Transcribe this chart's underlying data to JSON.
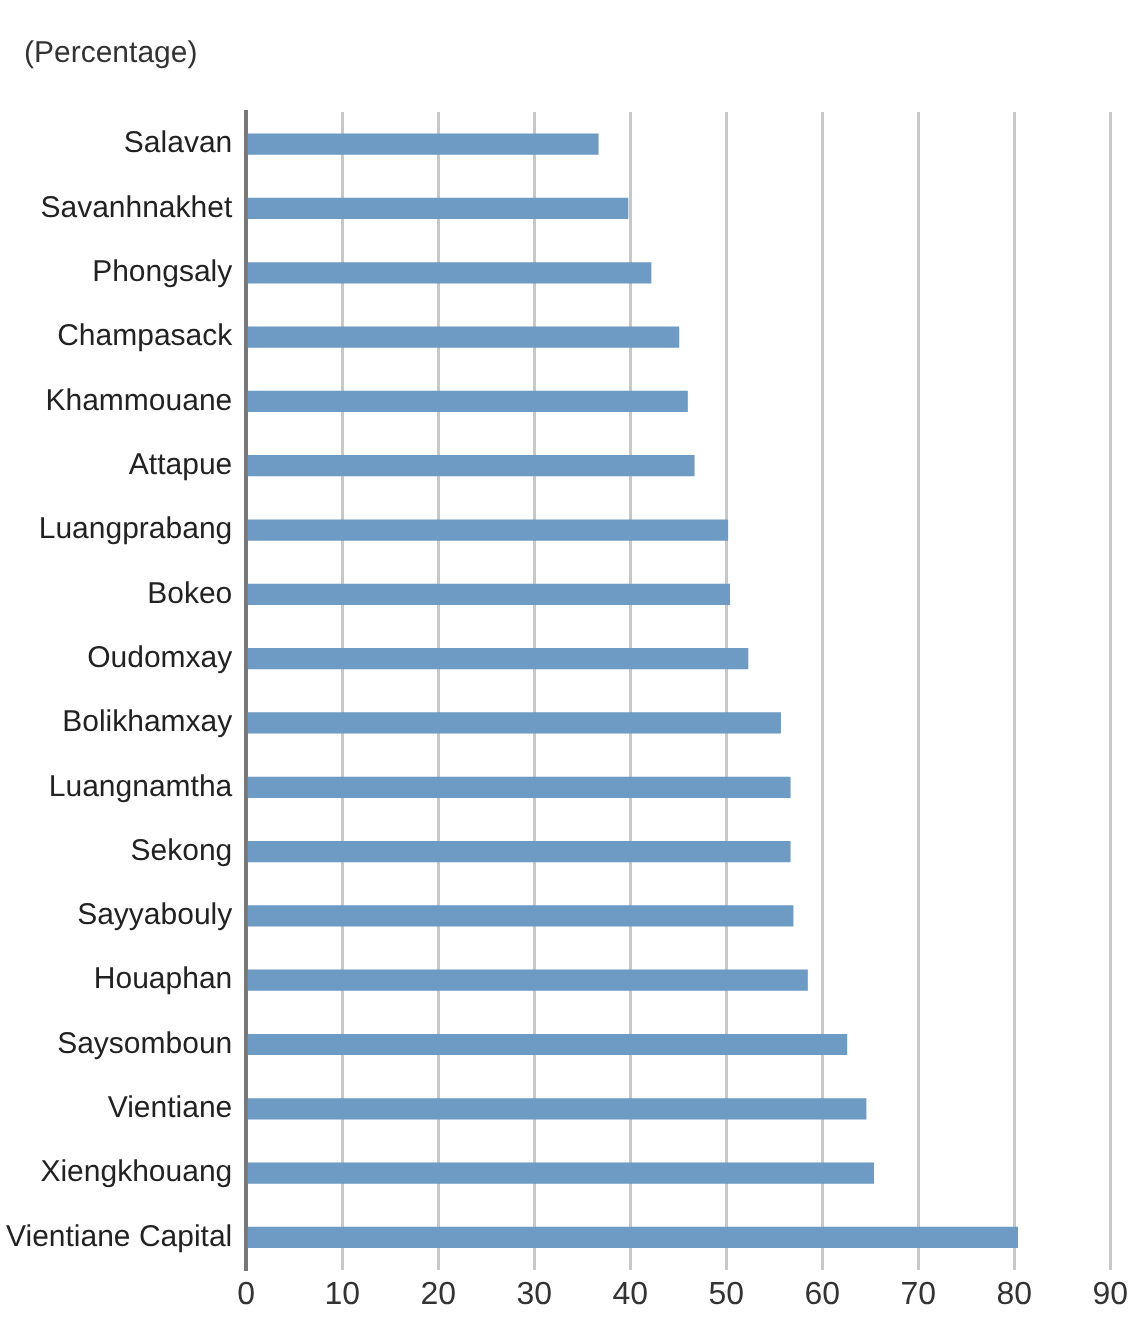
{
  "chart_data": {
    "type": "bar",
    "orientation": "horizontal",
    "subtitle": "(Percentage)",
    "categories": [
      "Salavan",
      "Savanhnakhet",
      "Phongsaly",
      "Champasack",
      "Khammouane",
      "Attapue",
      "Luangprabang",
      "Bokeo",
      "Oudomxay",
      "Bolikhamxay",
      "Luangnamtha",
      "Sekong",
      "Sayyabouly",
      "Houaphan",
      "Saysomboun",
      "Vientiane",
      "Xiengkhouang",
      "Vientiane Capital"
    ],
    "values": [
      36.7,
      39.8,
      42.2,
      45.1,
      46.0,
      46.7,
      50.2,
      50.4,
      52.3,
      55.7,
      56.7,
      56.7,
      57.0,
      58.5,
      62.6,
      64.6,
      65.4,
      80.4
    ],
    "color": "#6e9bc3",
    "xlim": [
      0,
      90
    ],
    "xticks": [
      0,
      10,
      20,
      30,
      40,
      50,
      60,
      70,
      80,
      90
    ],
    "grid": "x",
    "legend": false
  }
}
